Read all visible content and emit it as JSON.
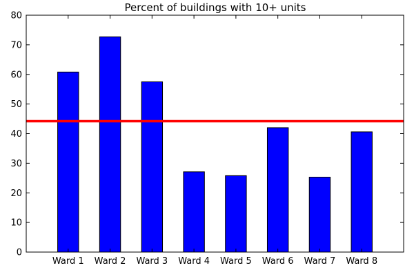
{
  "chart_data": {
    "type": "bar",
    "title": "Percent of buildings with 10+ units",
    "xlabel": "",
    "ylabel": "",
    "categories": [
      "Ward 1",
      "Ward 2",
      "Ward 3",
      "Ward 4",
      "Ward 5",
      "Ward 6",
      "Ward 7",
      "Ward 8"
    ],
    "values": [
      60.8,
      72.7,
      57.5,
      27.1,
      25.8,
      42.0,
      25.3,
      40.6
    ],
    "ylim": [
      0,
      80
    ],
    "yticks": [
      0,
      10,
      20,
      30,
      40,
      50,
      60,
      70,
      80
    ],
    "reference_line": {
      "y": 44.2,
      "color": "#ff0000"
    },
    "bar_color": "#0000ff",
    "bar_edge_color": "#000000",
    "grid": false,
    "legend": "none"
  }
}
